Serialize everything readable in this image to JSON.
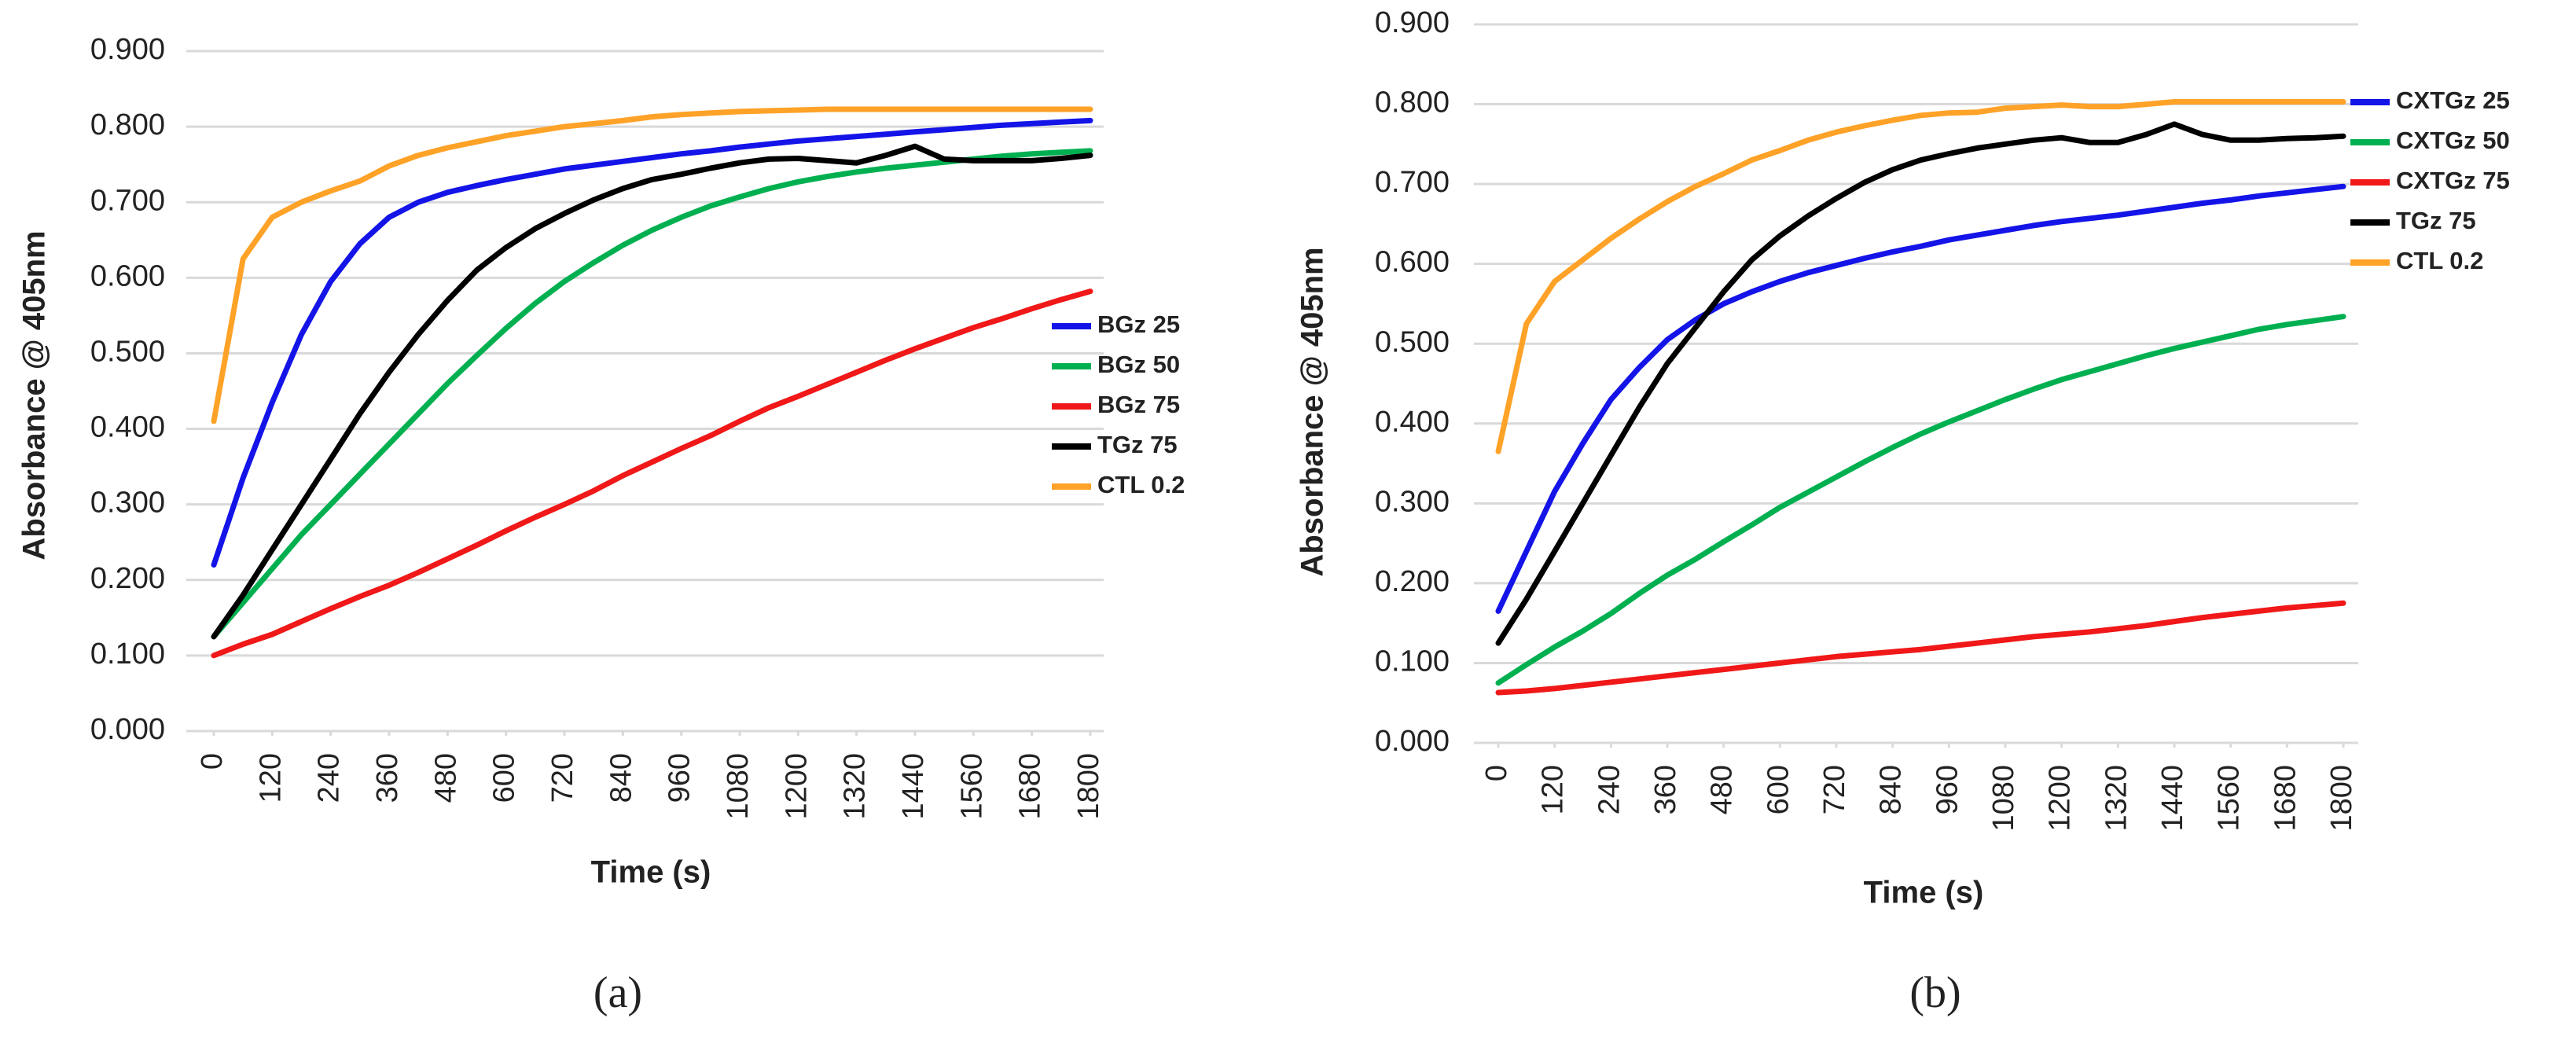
{
  "chart_data": [
    {
      "type": "line",
      "caption": "(a)",
      "x_label": "Time (s)",
      "y_label": "Absorbance @ 405nm",
      "x": [
        0,
        60,
        120,
        180,
        240,
        300,
        360,
        420,
        480,
        540,
        600,
        660,
        720,
        780,
        840,
        900,
        960,
        1020,
        1080,
        1140,
        1200,
        1260,
        1320,
        1380,
        1440,
        1500,
        1560,
        1620,
        1680,
        1740,
        1800
      ],
      "xlim": [
        0,
        1800
      ],
      "xticks": [
        0,
        120,
        240,
        360,
        480,
        600,
        720,
        840,
        960,
        1080,
        1200,
        1320,
        1440,
        1560,
        1680,
        1800
      ],
      "ylim": [
        0,
        0.9
      ],
      "yticks": [
        {
          "value": 0,
          "label": "0.000"
        },
        {
          "value": 0.1,
          "label": "0.100"
        },
        {
          "value": 0.2,
          "label": "0.200"
        },
        {
          "value": 0.3,
          "label": "0.300"
        },
        {
          "value": 0.4,
          "label": "0.400"
        },
        {
          "value": 0.5,
          "label": "0.500"
        },
        {
          "value": 0.6,
          "label": "0.600"
        },
        {
          "value": 0.7,
          "label": "0.700"
        },
        {
          "value": 0.8,
          "label": "0.800"
        },
        {
          "value": 0.9,
          "label": "0.900"
        }
      ],
      "grid": true,
      "legend": "right",
      "series": [
        {
          "name": "BGz 25",
          "color": "#1414e8",
          "values": [
            0.22,
            0.335,
            0.435,
            0.525,
            0.595,
            0.645,
            0.68,
            0.7,
            0.713,
            0.722,
            0.73,
            0.737,
            0.744,
            0.749,
            0.754,
            0.759,
            0.764,
            0.768,
            0.773,
            0.777,
            0.781,
            0.784,
            0.787,
            0.79,
            0.793,
            0.796,
            0.799,
            0.802,
            0.804,
            0.806,
            0.808
          ]
        },
        {
          "name": "BGz 50",
          "color": "#00b050",
          "values": [
            0.125,
            0.17,
            0.215,
            0.26,
            0.3,
            0.34,
            0.38,
            0.42,
            0.46,
            0.497,
            0.533,
            0.566,
            0.595,
            0.62,
            0.643,
            0.663,
            0.68,
            0.695,
            0.707,
            0.718,
            0.727,
            0.734,
            0.74,
            0.745,
            0.749,
            0.753,
            0.757,
            0.761,
            0.764,
            0.766,
            0.768
          ]
        },
        {
          "name": "BGz 75",
          "color": "#f01818",
          "values": [
            0.1,
            0.115,
            0.128,
            0.145,
            0.162,
            0.178,
            0.193,
            0.21,
            0.228,
            0.246,
            0.265,
            0.283,
            0.3,
            0.318,
            0.338,
            0.356,
            0.374,
            0.391,
            0.41,
            0.428,
            0.443,
            0.459,
            0.475,
            0.491,
            0.506,
            0.52,
            0.534,
            0.546,
            0.559,
            0.571,
            0.582
          ]
        },
        {
          "name": "TGz 75",
          "color": "#000000",
          "values": [
            0.125,
            0.18,
            0.24,
            0.3,
            0.36,
            0.42,
            0.475,
            0.525,
            0.57,
            0.61,
            0.64,
            0.665,
            0.685,
            0.703,
            0.718,
            0.73,
            0.737,
            0.745,
            0.752,
            0.757,
            0.758,
            0.755,
            0.752,
            0.762,
            0.774,
            0.757,
            0.755,
            0.755,
            0.755,
            0.758,
            0.762
          ]
        },
        {
          "name": "CTL 0.2",
          "color": "#ffa228",
          "values": [
            0.41,
            0.625,
            0.68,
            0.7,
            0.715,
            0.728,
            0.748,
            0.762,
            0.772,
            0.78,
            0.788,
            0.794,
            0.8,
            0.804,
            0.808,
            0.813,
            0.816,
            0.818,
            0.82,
            0.821,
            0.822,
            0.823,
            0.823,
            0.823,
            0.823,
            0.823,
            0.823,
            0.823,
            0.823,
            0.823,
            0.823
          ]
        }
      ]
    },
    {
      "type": "line",
      "caption": "(b)",
      "x_label": "Time (s)",
      "y_label": "Absorbance @ 405nm",
      "x": [
        0,
        60,
        120,
        180,
        240,
        300,
        360,
        420,
        480,
        540,
        600,
        660,
        720,
        780,
        840,
        900,
        960,
        1020,
        1080,
        1140,
        1200,
        1260,
        1320,
        1380,
        1440,
        1500,
        1560,
        1620,
        1680,
        1740,
        1800
      ],
      "xlim": [
        0,
        1800
      ],
      "xticks": [
        0,
        120,
        240,
        360,
        480,
        600,
        720,
        840,
        960,
        1080,
        1200,
        1320,
        1440,
        1560,
        1680,
        1800
      ],
      "ylim": [
        0,
        0.9
      ],
      "yticks": [
        {
          "value": 0,
          "label": "0.000"
        },
        {
          "value": 0.1,
          "label": "0.100"
        },
        {
          "value": 0.2,
          "label": "0.200"
        },
        {
          "value": 0.3,
          "label": "0.300"
        },
        {
          "value": 0.4,
          "label": "0.400"
        },
        {
          "value": 0.5,
          "label": "0.500"
        },
        {
          "value": 0.6,
          "label": "0.600"
        },
        {
          "value": 0.7,
          "label": "0.700"
        },
        {
          "value": 0.8,
          "label": "0.800"
        },
        {
          "value": 0.9,
          "label": "0.900"
        }
      ],
      "grid": true,
      "legend": "right",
      "series": [
        {
          "name": "CXTGz 25",
          "color": "#1414e8",
          "values": [
            0.165,
            0.24,
            0.315,
            0.375,
            0.43,
            0.47,
            0.505,
            0.53,
            0.55,
            0.565,
            0.578,
            0.589,
            0.598,
            0.607,
            0.615,
            0.622,
            0.63,
            0.636,
            0.642,
            0.648,
            0.653,
            0.657,
            0.661,
            0.666,
            0.671,
            0.676,
            0.68,
            0.685,
            0.689,
            0.693,
            0.697
          ]
        },
        {
          "name": "CXTGz 50",
          "color": "#00b050",
          "values": [
            0.075,
            0.098,
            0.12,
            0.14,
            0.162,
            0.187,
            0.21,
            0.23,
            0.252,
            0.273,
            0.295,
            0.314,
            0.333,
            0.352,
            0.37,
            0.387,
            0.402,
            0.416,
            0.43,
            0.443,
            0.455,
            0.465,
            0.475,
            0.485,
            0.494,
            0.502,
            0.51,
            0.518,
            0.524,
            0.529,
            0.534
          ]
        },
        {
          "name": "CXTGz 75",
          "color": "#f01818",
          "values": [
            0.063,
            0.065,
            0.068,
            0.072,
            0.076,
            0.08,
            0.084,
            0.088,
            0.092,
            0.096,
            0.1,
            0.104,
            0.108,
            0.111,
            0.114,
            0.117,
            0.121,
            0.125,
            0.129,
            0.133,
            0.136,
            0.139,
            0.143,
            0.147,
            0.152,
            0.157,
            0.161,
            0.165,
            0.169,
            0.172,
            0.175
          ]
        },
        {
          "name": "TGz 75",
          "color": "#000000",
          "values": [
            0.125,
            0.18,
            0.24,
            0.3,
            0.36,
            0.42,
            0.475,
            0.52,
            0.565,
            0.605,
            0.635,
            0.66,
            0.682,
            0.702,
            0.718,
            0.73,
            0.738,
            0.745,
            0.75,
            0.755,
            0.758,
            0.752,
            0.752,
            0.762,
            0.775,
            0.762,
            0.755,
            0.755,
            0.757,
            0.758,
            0.76
          ]
        },
        {
          "name": "CTL 0.2",
          "color": "#ffa228",
          "values": [
            0.365,
            0.525,
            0.578,
            0.605,
            0.632,
            0.656,
            0.678,
            0.697,
            0.713,
            0.73,
            0.742,
            0.755,
            0.765,
            0.773,
            0.78,
            0.786,
            0.789,
            0.79,
            0.795,
            0.797,
            0.799,
            0.797,
            0.797,
            0.8,
            0.803,
            0.803,
            0.803,
            0.803,
            0.803,
            0.803,
            0.803
          ]
        }
      ]
    }
  ]
}
